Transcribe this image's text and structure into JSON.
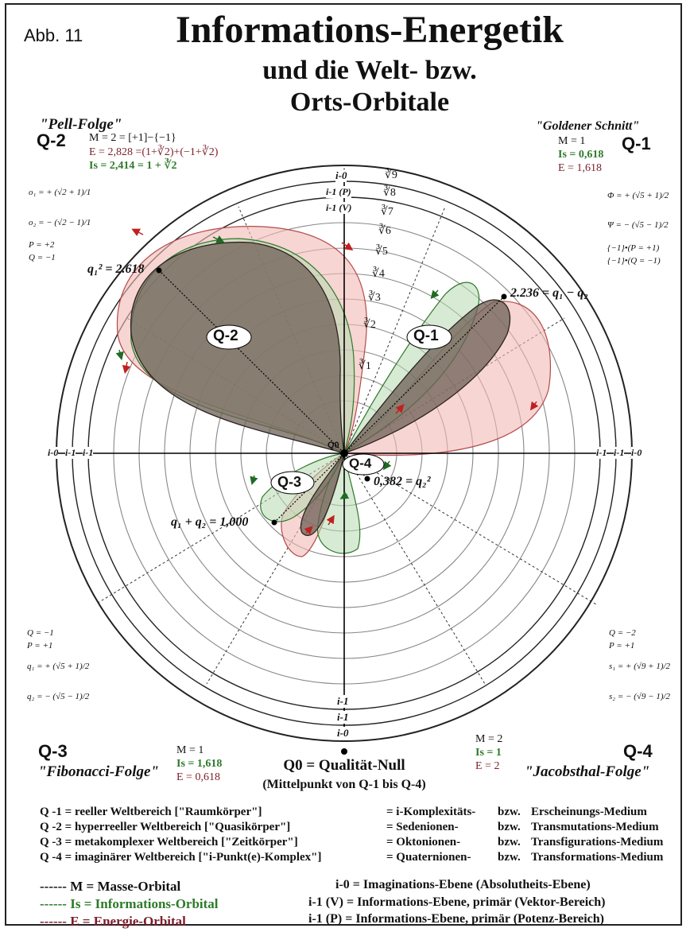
{
  "header": {
    "abb": "Abb. 11",
    "title": "Informations-Energetik",
    "subtitle1": "und die Welt- bzw.",
    "subtitle2": "Orts-Orbitale"
  },
  "quadrants": {
    "q2": {
      "seq": "\"Pell-Folge\"",
      "label": "Q-2",
      "m": "M = 2 = [+1]−{−1}",
      "e": "E = 2,828 =(1+∛2)+(−1+∛2)",
      "is": "Is = 2,414 = 1 + ∛2",
      "f1": "o₁ = + (√2 + 1)/1",
      "f2": "o₂ = − (√2 − 1)/1",
      "p": "P = +2",
      "q": "Q = −1"
    },
    "q1": {
      "seq": "\"Goldener Schnitt\"",
      "label": "Q-1",
      "m": "M = 1",
      "is": "Is = 0,618",
      "e": "E = 1,618",
      "f1": "Φ = + (√5 + 1)/2",
      "f2": "Ψ = − (√5 − 1)/2",
      "f3": "{−1}•(P = +1)",
      "f4": "{−1}•(Q = −1)"
    },
    "q3": {
      "label": "Q-3",
      "seq": "\"Fibonacci-Folge\"",
      "m": "M = 1",
      "is": "Is = 1,618",
      "e": "E = 0,618",
      "q": "Q = −1",
      "p": "P = +1",
      "f1": "q₁ = + (√5 + 1)/2",
      "f2": "q₂ = − (√5 − 1)/2"
    },
    "q4": {
      "label": "Q-4",
      "seq": "\"Jacobsthal-Folge\"",
      "m": "M = 2",
      "is": "Is = 1",
      "e": "E = 2",
      "q": "Q = −2",
      "p": "P = +1",
      "f1": "s₁ = + (√9 + 1)/2",
      "f2": "s₂ = − (√9 − 1)/2"
    }
  },
  "center": {
    "line1": "Q0 = Qualität-Null",
    "line2": "(Mittelpunkt von Q-1 bis Q-4)"
  },
  "diagram": {
    "axis_top": [
      "i-0",
      "i-1 (P)",
      "i-1 (V)"
    ],
    "axis_bottom": [
      "i-1",
      "i-1",
      "i-0"
    ],
    "axis_left": [
      "i-0",
      "i-1",
      "i-1"
    ],
    "axis_right": [
      "i-1",
      "i-1",
      "i-0"
    ],
    "roots": [
      "∛9",
      "∛8",
      "∛7",
      "∛6",
      "∛5",
      "∛4",
      "∛3",
      "∛2",
      "∛1"
    ],
    "orbital_labels": [
      "Q-2",
      "Q-1",
      "Q-3",
      "Q-4",
      "Q0"
    ],
    "points": {
      "p1": "q₁² = 2.618",
      "p2": "2.236 = q₁ − q₂",
      "p3": "q₁ + q₂ = 1,000",
      "p4": "0,382 = q₂²"
    }
  },
  "worlds": [
    {
      "left": "Q -1 = reeller Weltbereich [\"Raumkörper\"]",
      "mid": "= i-Komplexitäts-",
      "bzw": "bzw.",
      "right": "Erscheinungs-Medium"
    },
    {
      "left": "Q -2 = hyperreeller Weltbereich [\"Quasikörper\"]",
      "mid": "= Sedenionen-",
      "bzw": "bzw.",
      "right": "Transmutations-Medium"
    },
    {
      "left": "Q -3 = metakomplexer Weltbereich [\"Zeitkörper\"]",
      "mid": "= Oktonionen-",
      "bzw": "bzw.",
      "right": "Transfigurations-Medium"
    },
    {
      "left": "Q -4 = imaginärer Weltbereich [\"i-Punkt(e)-Komplex\"]",
      "mid": "= Quaternionen-",
      "bzw": "bzw.",
      "right": "Transformations-Medium"
    }
  ],
  "legend": {
    "m": "------ M = Masse-Orbital",
    "is": "------ Is = Informations-Orbital",
    "e": "------ E = Energie-Orbital"
  },
  "planes": {
    "i0": "i-0 = Imaginations-Ebene (Absolutheits-Ebene)",
    "i1v": "i-1 (V) = Informations-Ebene, primär (Vektor-Bereich)",
    "i1p": "i-1 (P) = Informations-Ebene, primär (Potenz-Bereich)"
  },
  "colors": {
    "mass": "#2a2420",
    "mass_fill": "#6e5f55",
    "info": "#2d7a2a",
    "info_fill": "#b7d9b0",
    "energy": "#b24a4a",
    "energy_fill": "#f2b9b6",
    "arrow_red": "#c02020",
    "arrow_green": "#1f6b24"
  }
}
